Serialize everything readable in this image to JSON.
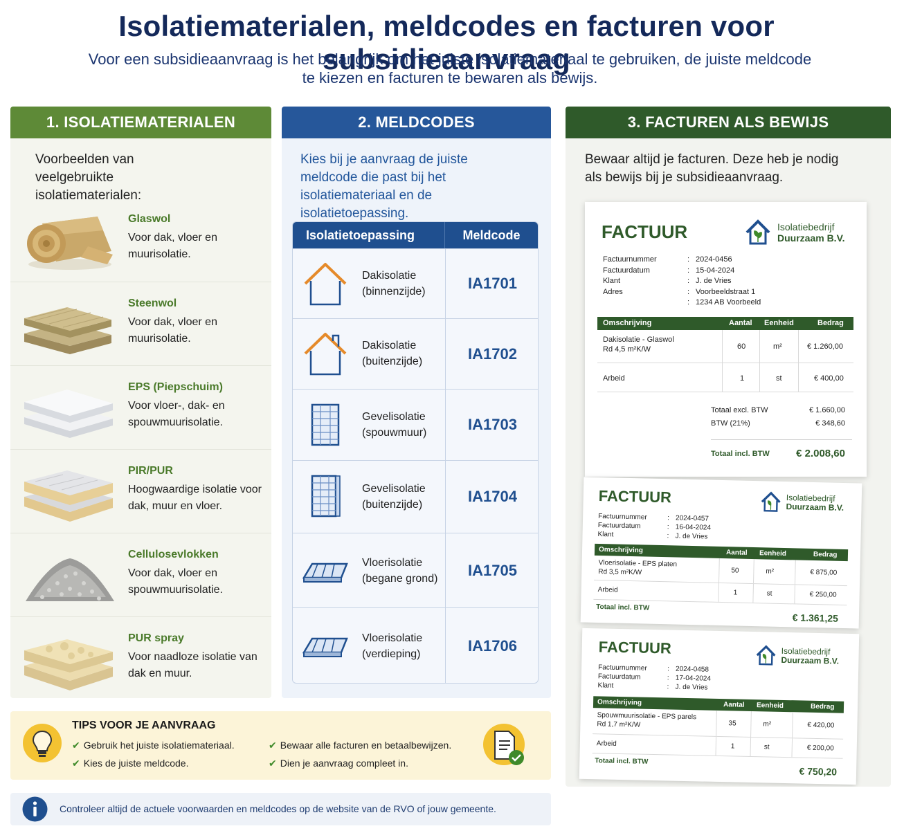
{
  "header": {
    "title": "Isolatiematerialen, meldcodes en facturen voor subsidieaanvraag",
    "subtitle_line1": "Voor een subsidieaanvraag is het belangrijk om het juiste isolatiemateriaal te gebruiken, de juiste meldcode",
    "subtitle_line2": "te kiezen en facturen te bewaren als bewijs."
  },
  "materials": {
    "heading": "1. ISOLATIEMATERIALEN",
    "intro": "Voorbeelden van veelgebruikte isolatiematerialen:",
    "items": [
      {
        "name": "Glaswol",
        "desc": "Voor dak, vloer en muurisolatie."
      },
      {
        "name": "Steenwol",
        "desc": "Voor dak, vloer en muurisolatie."
      },
      {
        "name": "EPS (Piepschuim)",
        "desc": "Voor vloer-, dak- en spouwmuurisolatie."
      },
      {
        "name": "PIR/PUR",
        "desc": "Hoogwaardige isolatie voor dak, muur en vloer."
      },
      {
        "name": "Cellulosevlokken",
        "desc": "Voor dak, vloer en spouwmuurisolatie."
      },
      {
        "name": "PUR spray",
        "desc": "Voor naadloze isolatie van dak en muur."
      }
    ]
  },
  "meldcodes": {
    "heading": "2. MELDCODES",
    "intro": "Kies bij je aanvraag de juiste meldcode die past bij het isolatiemateriaal en de isolatietoepassing.",
    "col_application": "Isolatietoepassing",
    "col_code": "Meldcode",
    "rows": [
      {
        "line1": "Dakisolatie",
        "line2": "(binnenzijde)",
        "code": "IA1701",
        "icon": "house-icon"
      },
      {
        "line1": "Dakisolatie",
        "line2": "(buitenzijde)",
        "code": "IA1702",
        "icon": "house-chimney-icon"
      },
      {
        "line1": "Gevelisolatie",
        "line2": "(spouwmuur)",
        "code": "IA1703",
        "icon": "wall-icon"
      },
      {
        "line1": "Gevelisolatie",
        "line2": "(buitenzijde)",
        "code": "IA1704",
        "icon": "wall-outside-icon"
      },
      {
        "line1": "Vloerisolatie",
        "line2": "(begane grond)",
        "code": "IA1705",
        "icon": "floor-icon"
      },
      {
        "line1": "Vloerisolatie",
        "line2": "(verdieping)",
        "code": "IA1706",
        "icon": "floor-upper-icon"
      }
    ]
  },
  "invoices": {
    "heading": "3. FACTUREN ALS BEWIJS",
    "intro": "Bewaar altijd je facturen. Deze heb je nodig als bewijs bij je subsidieaanvraag.",
    "title": "FACTUUR",
    "company_line1": "Isolatiebedrijf",
    "company_line2": "Duurzaam B.V.",
    "labels": {
      "number": "Factuurnummer",
      "date": "Factuurdatum",
      "client": "Klant",
      "address": "Adres",
      "description": "Omschrijving",
      "quantity": "Aantal",
      "unit": "Eenheid",
      "amount": "Bedrag",
      "subtotal": "Totaal excl. BTW",
      "vat": "BTW (21%)",
      "total": "Totaal incl. BTW"
    },
    "invoice1": {
      "number": "2024-0456",
      "date": "15-04-2024",
      "client": "J. de Vries",
      "address1": "Voorbeeldstraat 1",
      "address2": "1234 AB Voorbeeld",
      "line1_desc1": "Dakisolatie - Glaswol",
      "line1_desc2": "Rd 4,5 m²K/W",
      "line1_qty": "60",
      "line1_unit": "m²",
      "line1_amount": "€ 1.260,00",
      "line2_desc": "Arbeid",
      "line2_qty": "1",
      "line2_unit": "st",
      "line2_amount": "€ 400,00",
      "subtotal": "€ 1.660,00",
      "vat": "€ 348,60",
      "total": "€ 2.008,60"
    },
    "invoice2": {
      "number": "2024-0457",
      "date": "16-04-2024",
      "client": "J. de Vries",
      "line1_desc1": "Vloerisolatie - EPS platen",
      "line1_desc2": "Rd 3,5 m²K/W",
      "line1_qty": "50",
      "line1_unit": "m²",
      "line1_amount": "€ 875,00",
      "line2_desc": "Arbeid",
      "line2_qty": "1",
      "line2_unit": "st",
      "line2_amount": "€ 250,00",
      "total": "€ 1.361,25"
    },
    "invoice3": {
      "number": "2024-0458",
      "date": "17-04-2024",
      "client": "J. de Vries",
      "line1_desc1": "Spouwmuurisolatie - EPS parels",
      "line1_desc2": "Rd 1,7 m²K/W",
      "line1_qty": "35",
      "line1_unit": "m²",
      "line1_amount": "€ 420,00",
      "line2_desc": "Arbeid",
      "line2_qty": "1",
      "line2_unit": "st",
      "line2_amount": "€ 200,00",
      "total": "€ 750,20"
    }
  },
  "tips": {
    "title": "TIPS VOOR JE AANVRAAG",
    "items": [
      "Gebruik het juiste isolatiemateriaal.",
      "Kies de juiste meldcode.",
      "Bewaar alle facturen en betaalbewijzen.",
      "Dien je aanvraag compleet in."
    ],
    "icons": [
      "lightbulb-icon",
      "document-check-icon"
    ]
  },
  "info": {
    "text": "Controleer altijd de actuele voorwaarden en meldcodes op de website van de RVO of jouw gemeente.",
    "icon": "info-icon"
  },
  "colors": {
    "title": "#14295a",
    "green_header": "#5e8a37",
    "blue_header": "#26579a",
    "dark_green_header": "#2f5a2a",
    "code_blue": "#1f4f8f",
    "tips_bg": "#fcf4d8"
  }
}
